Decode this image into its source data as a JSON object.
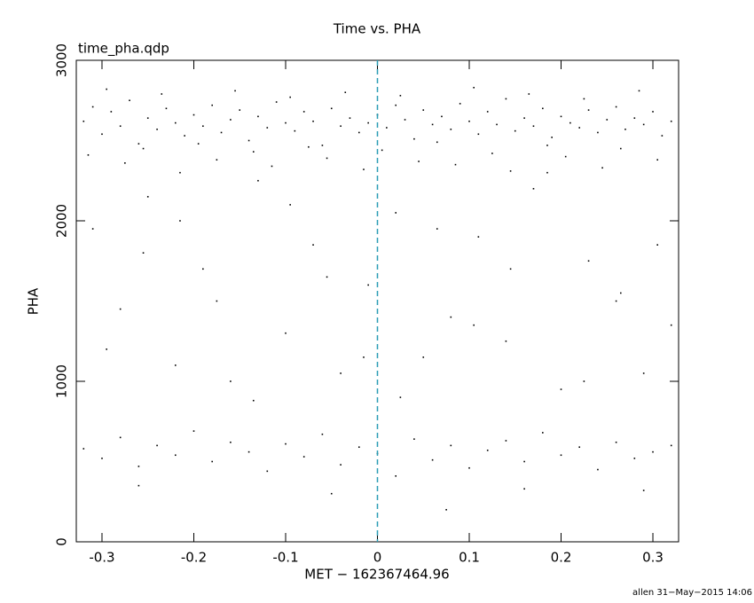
{
  "chart_data": {
    "type": "scatter",
    "title": "Time vs. PHA",
    "subtitle": "time_pha.qdp",
    "x_label": "MET − 162367464.96",
    "y_label": "PHA",
    "footer": "allen 31−May−2015 14:06",
    "color": "#000000",
    "reference_line": {
      "x": 0,
      "color": "#2a9db5"
    },
    "xlim": [
      -0.328,
      0.328
    ],
    "ylim": [
      0,
      3000
    ],
    "xticks": [
      -0.3,
      -0.2,
      -0.1,
      0,
      0.1,
      0.2,
      0.3
    ],
    "yticks": [
      0,
      1000,
      2000,
      3000
    ],
    "x": [
      -0.32,
      -0.31,
      -0.3,
      -0.29,
      -0.28,
      -0.27,
      -0.26,
      -0.25,
      -0.24,
      -0.23,
      -0.22,
      -0.21,
      -0.2,
      -0.19,
      -0.18,
      -0.17,
      -0.16,
      -0.15,
      -0.14,
      -0.13,
      -0.12,
      -0.11,
      -0.1,
      -0.09,
      -0.08,
      -0.07,
      -0.06,
      -0.05,
      -0.04,
      -0.03,
      -0.02,
      -0.01,
      0.0,
      0.01,
      0.02,
      0.03,
      0.04,
      0.05,
      0.06,
      0.07,
      0.08,
      0.09,
      0.1,
      0.11,
      0.12,
      0.13,
      0.14,
      0.15,
      0.16,
      0.17,
      0.18,
      0.19,
      0.2,
      0.21,
      0.22,
      0.23,
      0.24,
      0.25,
      0.26,
      0.27,
      0.28,
      0.29,
      0.3,
      0.31,
      0.32,
      -0.315,
      -0.295,
      -0.275,
      -0.255,
      -0.235,
      -0.215,
      -0.195,
      -0.175,
      -0.155,
      -0.135,
      -0.115,
      -0.095,
      -0.075,
      -0.055,
      -0.035,
      -0.015,
      0.005,
      0.025,
      0.045,
      0.065,
      0.085,
      0.105,
      0.125,
      0.145,
      0.165,
      0.185,
      0.205,
      0.225,
      0.245,
      0.265,
      0.285,
      0.305,
      -0.31,
      -0.28,
      -0.25,
      -0.22,
      -0.19,
      -0.16,
      -0.13,
      -0.1,
      -0.07,
      -0.04,
      -0.01,
      0.02,
      0.05,
      0.08,
      0.11,
      0.14,
      0.17,
      0.2,
      0.23,
      0.26,
      0.29,
      0.32,
      -0.295,
      -0.255,
      -0.215,
      -0.175,
      -0.135,
      -0.095,
      -0.055,
      -0.015,
      0.025,
      0.065,
      0.105,
      0.145,
      0.185,
      0.225,
      0.265,
      0.305,
      -0.32,
      -0.3,
      -0.28,
      -0.26,
      -0.24,
      -0.22,
      -0.2,
      -0.18,
      -0.16,
      -0.14,
      -0.12,
      -0.1,
      -0.08,
      -0.06,
      -0.04,
      -0.02,
      0.0,
      0.02,
      0.04,
      0.06,
      0.08,
      0.1,
      0.12,
      0.14,
      0.16,
      0.18,
      0.2,
      0.22,
      0.24,
      0.26,
      0.28,
      0.3,
      0.32,
      -0.26,
      -0.05,
      0.075,
      0.16,
      0.29
    ],
    "values": [
      2620,
      2710,
      2540,
      2680,
      2590,
      2750,
      2480,
      2640,
      2570,
      2700,
      2610,
      2530,
      2660,
      2590,
      2720,
      2550,
      2630,
      2690,
      2500,
      2650,
      2580,
      2740,
      2610,
      2560,
      2680,
      2620,
      2470,
      2700,
      2590,
      2640,
      2550,
      2610,
      2660,
      2580,
      2720,
      2630,
      2510,
      2690,
      2600,
      2650,
      2570,
      2730,
      2620,
      2540,
      2680,
      2600,
      2760,
      2560,
      2640,
      2590,
      2700,
      2520,
      2650,
      2610,
      2580,
      2690,
      2550,
      2630,
      2710,
      2570,
      2640,
      2600,
      2680,
      2530,
      2620,
      2410,
      2820,
      2360,
      2450,
      2790,
      2300,
      2480,
      2380,
      2810,
      2430,
      2340,
      2770,
      2460,
      2390,
      2800,
      2320,
      2440,
      2780,
      2370,
      2490,
      2350,
      2830,
      2420,
      2310,
      2790,
      2470,
      2400,
      2760,
      2330,
      2450,
      2810,
      2380,
      1950,
      1450,
      2150,
      1100,
      1700,
      1000,
      2250,
      1300,
      1850,
      1050,
      1600,
      2050,
      1150,
      1400,
      1900,
      1250,
      2200,
      950,
      1750,
      1500,
      1050,
      1350,
      1200,
      1800,
      2000,
      1500,
      880,
      2100,
      1650,
      1150,
      900,
      1950,
      1350,
      1700,
      2300,
      1000,
      1550,
      1850,
      580,
      520,
      650,
      470,
      600,
      540,
      690,
      500,
      620,
      560,
      440,
      610,
      530,
      670,
      480,
      590,
      550,
      410,
      640,
      510,
      600,
      460,
      570,
      630,
      500,
      680,
      540,
      590,
      450,
      620,
      520,
      560,
      600,
      350,
      300,
      200,
      330,
      320
    ]
  }
}
